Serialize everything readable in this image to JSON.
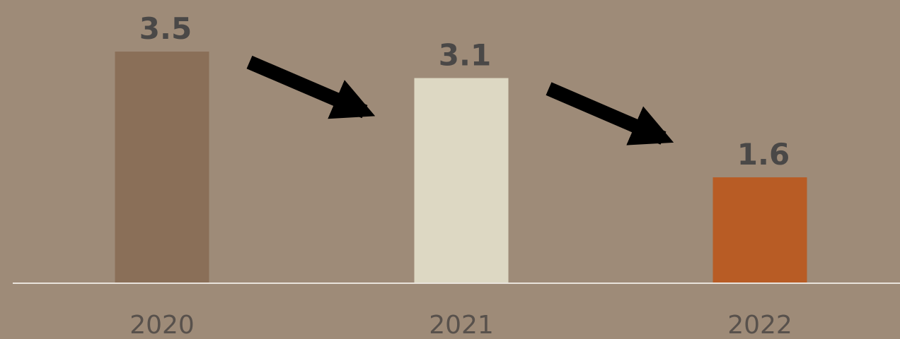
{
  "chart_data": {
    "type": "bar",
    "categories": [
      "2020",
      "2021",
      "2022"
    ],
    "values": [
      3.5,
      3.1,
      1.6
    ],
    "value_labels": [
      "3.5",
      "3.1",
      "1.6"
    ],
    "bar_colors": [
      "#8a6f58",
      "#ddd8c3",
      "#b85c25"
    ],
    "background_color": "#9e8b78",
    "axis_color": "#e9e3dc",
    "arrow_color": "#000000",
    "grid": false,
    "title": "",
    "xlabel": "",
    "ylabel": ""
  }
}
